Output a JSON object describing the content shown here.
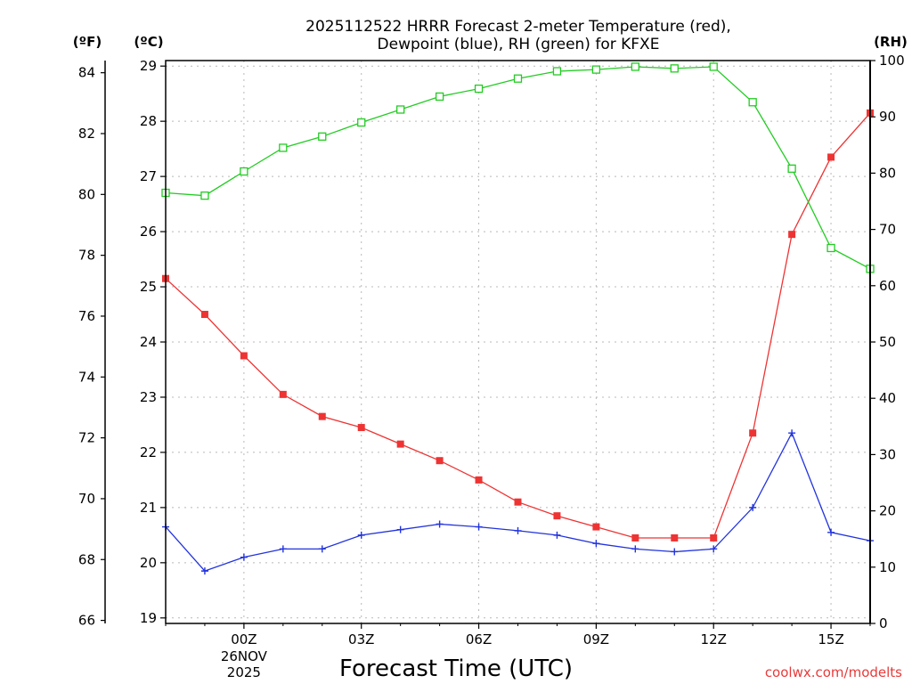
{
  "chart_data": {
    "type": "line",
    "title_lines": [
      "2025112522 HRRR Forecast 2-meter Temperature (red),",
      "Dewpoint (blue), RH (green) for KFXE"
    ],
    "xlabel": "Forecast Time (UTC)",
    "credit": "coolwx.com/modelts",
    "units": {
      "fahrenheit": "(ºF)",
      "celsius": "(ºC)",
      "rh": "(RH)"
    },
    "x_hours": [
      -2,
      -1,
      0,
      1,
      2,
      3,
      4,
      5,
      6,
      7,
      8,
      9,
      10,
      11,
      12,
      13,
      14,
      15,
      16
    ],
    "xlim": [
      -2,
      16
    ],
    "x_ticks": [
      {
        "hour": 0,
        "label": "00Z"
      },
      {
        "hour": 3,
        "label": "03Z"
      },
      {
        "hour": 6,
        "label": "06Z"
      },
      {
        "hour": 9,
        "label": "09Z"
      },
      {
        "hour": 12,
        "label": "12Z"
      },
      {
        "hour": 15,
        "label": "15Z"
      }
    ],
    "date_label": {
      "hour": 0,
      "lines": [
        "26NOV",
        "2025"
      ]
    },
    "ylim_celsius": [
      18.9,
      29.1
    ],
    "ylim_fahrenheit": [
      65.9,
      84.4
    ],
    "ylim_rh": [
      0,
      100
    ],
    "celsius_ticks": [
      19,
      20,
      21,
      22,
      23,
      24,
      25,
      26,
      27,
      28,
      29
    ],
    "fahrenheit_ticks": [
      66,
      68,
      70,
      72,
      74,
      76,
      78,
      80,
      82,
      84
    ],
    "rh_ticks": [
      0,
      10,
      20,
      30,
      40,
      50,
      60,
      70,
      80,
      90,
      100
    ],
    "series": [
      {
        "name": "Temperature",
        "axis": "celsius",
        "color": "#ee3333",
        "marker": "filled-square",
        "values": [
          25.15,
          24.5,
          23.75,
          23.05,
          22.65,
          22.45,
          22.15,
          21.85,
          21.5,
          21.1,
          20.85,
          20.65,
          20.45,
          20.45,
          20.45,
          22.35,
          25.95,
          27.35,
          28.15
        ]
      },
      {
        "name": "Dewpoint",
        "axis": "celsius",
        "color": "#2233dd",
        "marker": "plus",
        "values": [
          20.65,
          19.85,
          20.1,
          20.25,
          20.25,
          20.5,
          20.6,
          20.7,
          20.65,
          20.58,
          20.5,
          20.35,
          20.25,
          20.2,
          20.25,
          21.0,
          22.35,
          20.55,
          20.4
        ]
      },
      {
        "name": "RH",
        "axis": "rh",
        "color": "#22cc22",
        "marker": "open-square",
        "values": [
          76.5,
          76.0,
          80.3,
          84.5,
          86.5,
          89.0,
          91.3,
          93.6,
          95.0,
          96.8,
          98.1,
          98.4,
          98.9,
          98.6,
          98.9,
          92.6,
          80.8,
          66.7,
          63.0
        ]
      }
    ]
  }
}
